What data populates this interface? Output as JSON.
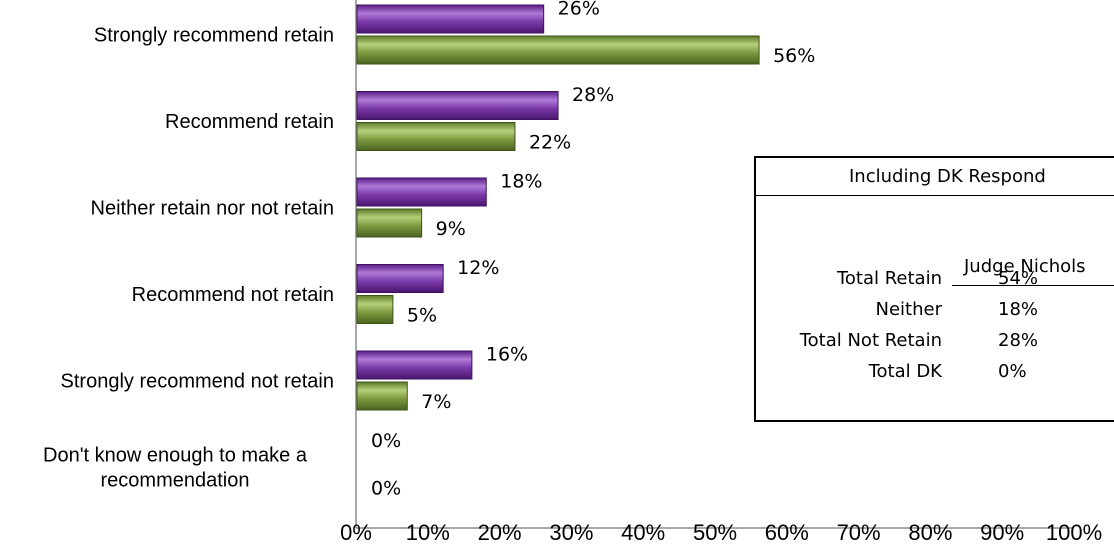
{
  "chart_data": {
    "type": "bar",
    "orientation": "horizontal",
    "categories": [
      [
        "Strongly recommend retain"
      ],
      [
        "Recommend retain"
      ],
      [
        "Neither retain nor not retain"
      ],
      [
        "Recommend not retain"
      ],
      [
        "Strongly recommend not retain"
      ],
      [
        "Don't know enough to make a",
        "recommendation"
      ]
    ],
    "series": [
      {
        "color": "#7030A0",
        "values": [
          26,
          28,
          18,
          12,
          16,
          0
        ]
      },
      {
        "color": "#76923C",
        "values": [
          56,
          22,
          9,
          5,
          7,
          0
        ]
      }
    ],
    "value_suffix": "%",
    "xlim": [
      0,
      100
    ],
    "x_ticks": [
      "0%",
      "10%",
      "20%",
      "30%",
      "40%",
      "50%",
      "60%",
      "70%",
      "80%",
      "90%",
      "100%"
    ],
    "grid": false
  },
  "summary_table": {
    "title": "Including DK Respond",
    "column_header": "Judge Nichols",
    "rows": [
      {
        "label": "Total Retain",
        "value": "54%"
      },
      {
        "label": "Neither",
        "value": "18%"
      },
      {
        "label": "Total Not Retain",
        "value": "28%"
      },
      {
        "label": "Total DK",
        "value": "0%"
      }
    ]
  }
}
